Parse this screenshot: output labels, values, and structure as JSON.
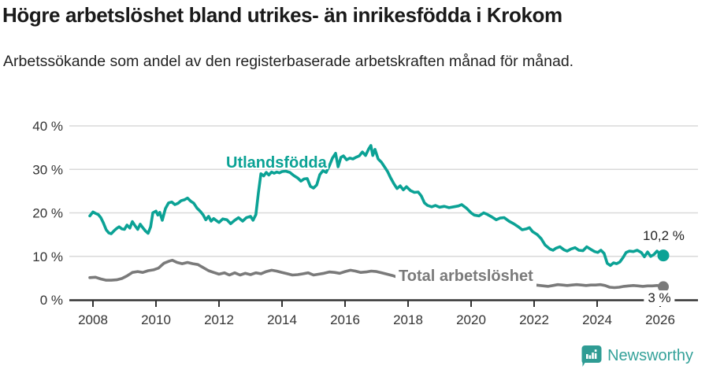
{
  "header": {
    "title": "Högre arbetslöshet bland utrikes- än inrikesfödda i Krokom",
    "subtitle": "Arbetssökande som andel av den registerbaserade arbetskraften månad för månad."
  },
  "footer": {
    "brand": "Newsworthy"
  },
  "colors": {
    "series_utlandsfodda": "#0ba295",
    "series_total": "#7a7a7a",
    "gridline": "#d9d9d9",
    "axis": "#333333",
    "tick_text": "#333333",
    "title_text": "#1a1a1a",
    "logo": "#35a29a",
    "background": "#ffffff"
  },
  "chart_data": {
    "type": "line",
    "title": "Högre arbetslöshet bland utrikes- än inrikesfödda i Krokom",
    "subtitle": "Arbetssökande som andel av den registerbaserade arbetskraften månad för månad.",
    "grid": true,
    "legend_position": "inline-labels",
    "x_axis": {
      "tick_labels": [
        "2008",
        "2010",
        "2012",
        "2014",
        "2016",
        "2018",
        "2020",
        "2022",
        "2024",
        "2026"
      ],
      "range": [
        2007.75,
        2027.2
      ]
    },
    "y_axis": {
      "ticks": [
        {
          "value": 0,
          "label": "0 %"
        },
        {
          "value": 10,
          "label": "10 %"
        },
        {
          "value": 20,
          "label": "20 %"
        },
        {
          "value": 30,
          "label": "30 %"
        },
        {
          "value": 40,
          "label": "40 %"
        }
      ],
      "range": [
        0,
        40
      ]
    },
    "series": [
      {
        "name": "Utlandsfödda",
        "color": "#0ba295",
        "end_label": "10,2 %",
        "end_value": 10.2,
        "points": [
          [
            2007.9,
            19.3
          ],
          [
            2008.0,
            20.2
          ],
          [
            2008.08,
            19.9
          ],
          [
            2008.17,
            19.6
          ],
          [
            2008.25,
            18.9
          ],
          [
            2008.33,
            17.7
          ],
          [
            2008.42,
            16.1
          ],
          [
            2008.5,
            15.4
          ],
          [
            2008.58,
            15.2
          ],
          [
            2008.67,
            15.9
          ],
          [
            2008.75,
            16.4
          ],
          [
            2008.83,
            16.8
          ],
          [
            2008.92,
            16.3
          ],
          [
            2009.0,
            16.2
          ],
          [
            2009.08,
            17.2
          ],
          [
            2009.17,
            16.5
          ],
          [
            2009.25,
            18.0
          ],
          [
            2009.33,
            17.1
          ],
          [
            2009.42,
            16.2
          ],
          [
            2009.5,
            17.4
          ],
          [
            2009.58,
            16.6
          ],
          [
            2009.67,
            15.8
          ],
          [
            2009.75,
            15.3
          ],
          [
            2009.83,
            16.8
          ],
          [
            2009.9,
            20.0
          ],
          [
            2010.0,
            20.4
          ],
          [
            2010.06,
            19.5
          ],
          [
            2010.12,
            20.1
          ],
          [
            2010.2,
            18.3
          ],
          [
            2010.3,
            21.0
          ],
          [
            2010.4,
            22.3
          ],
          [
            2010.5,
            22.5
          ],
          [
            2010.6,
            21.9
          ],
          [
            2010.7,
            22.2
          ],
          [
            2010.8,
            22.8
          ],
          [
            2010.9,
            23.0
          ],
          [
            2011.0,
            23.4
          ],
          [
            2011.1,
            22.7
          ],
          [
            2011.2,
            22.2
          ],
          [
            2011.3,
            21.1
          ],
          [
            2011.4,
            20.4
          ],
          [
            2011.5,
            19.5
          ],
          [
            2011.58,
            18.4
          ],
          [
            2011.67,
            19.2
          ],
          [
            2011.75,
            18.1
          ],
          [
            2011.83,
            18.7
          ],
          [
            2011.92,
            18.2
          ],
          [
            2012.0,
            17.8
          ],
          [
            2012.12,
            18.6
          ],
          [
            2012.25,
            18.4
          ],
          [
            2012.37,
            17.5
          ],
          [
            2012.5,
            18.3
          ],
          [
            2012.62,
            18.9
          ],
          [
            2012.75,
            18.1
          ],
          [
            2012.87,
            18.9
          ],
          [
            2013.0,
            19.2
          ],
          [
            2013.08,
            18.3
          ],
          [
            2013.17,
            19.6
          ],
          [
            2013.25,
            24.6
          ],
          [
            2013.33,
            29.0
          ],
          [
            2013.42,
            28.5
          ],
          [
            2013.5,
            29.3
          ],
          [
            2013.58,
            28.7
          ],
          [
            2013.67,
            29.4
          ],
          [
            2013.75,
            29.1
          ],
          [
            2013.83,
            29.4
          ],
          [
            2013.92,
            29.2
          ],
          [
            2014.0,
            29.5
          ],
          [
            2014.12,
            29.6
          ],
          [
            2014.25,
            29.3
          ],
          [
            2014.37,
            28.6
          ],
          [
            2014.5,
            28.0
          ],
          [
            2014.6,
            27.3
          ],
          [
            2014.7,
            27.8
          ],
          [
            2014.8,
            27.9
          ],
          [
            2014.9,
            26.1
          ],
          [
            2015.0,
            25.7
          ],
          [
            2015.1,
            26.4
          ],
          [
            2015.2,
            28.8
          ],
          [
            2015.3,
            29.7
          ],
          [
            2015.4,
            29.3
          ],
          [
            2015.5,
            30.8
          ],
          [
            2015.6,
            32.6
          ],
          [
            2015.7,
            33.7
          ],
          [
            2015.78,
            30.6
          ],
          [
            2015.87,
            32.8
          ],
          [
            2015.95,
            33.1
          ],
          [
            2016.05,
            32.2
          ],
          [
            2016.15,
            32.6
          ],
          [
            2016.25,
            32.4
          ],
          [
            2016.35,
            32.8
          ],
          [
            2016.45,
            33.1
          ],
          [
            2016.55,
            34.0
          ],
          [
            2016.65,
            33.2
          ],
          [
            2016.75,
            34.7
          ],
          [
            2016.82,
            35.5
          ],
          [
            2016.88,
            33.2
          ],
          [
            2016.95,
            34.6
          ],
          [
            2017.05,
            32.4
          ],
          [
            2017.15,
            31.7
          ],
          [
            2017.25,
            30.6
          ],
          [
            2017.35,
            29.5
          ],
          [
            2017.45,
            28.0
          ],
          [
            2017.55,
            26.7
          ],
          [
            2017.65,
            25.6
          ],
          [
            2017.75,
            26.2
          ],
          [
            2017.85,
            25.3
          ],
          [
            2017.95,
            26.0
          ],
          [
            2018.08,
            25.1
          ],
          [
            2018.2,
            24.7
          ],
          [
            2018.32,
            24.8
          ],
          [
            2018.42,
            23.9
          ],
          [
            2018.52,
            22.3
          ],
          [
            2018.62,
            21.7
          ],
          [
            2018.75,
            21.4
          ],
          [
            2018.87,
            21.7
          ],
          [
            2019.0,
            21.3
          ],
          [
            2019.15,
            21.5
          ],
          [
            2019.3,
            21.2
          ],
          [
            2019.45,
            21.4
          ],
          [
            2019.6,
            21.6
          ],
          [
            2019.7,
            21.9
          ],
          [
            2019.85,
            21.1
          ],
          [
            2020.0,
            20.0
          ],
          [
            2020.1,
            19.5
          ],
          [
            2020.25,
            19.3
          ],
          [
            2020.4,
            20.0
          ],
          [
            2020.5,
            19.7
          ],
          [
            2020.65,
            19.1
          ],
          [
            2020.8,
            18.4
          ],
          [
            2020.92,
            18.8
          ],
          [
            2021.05,
            18.9
          ],
          [
            2021.2,
            18.1
          ],
          [
            2021.35,
            17.5
          ],
          [
            2021.5,
            16.8
          ],
          [
            2021.62,
            16.1
          ],
          [
            2021.75,
            16.3
          ],
          [
            2021.85,
            16.6
          ],
          [
            2021.95,
            15.7
          ],
          [
            2022.1,
            15.0
          ],
          [
            2022.22,
            14.1
          ],
          [
            2022.35,
            12.6
          ],
          [
            2022.5,
            11.7
          ],
          [
            2022.6,
            11.4
          ],
          [
            2022.7,
            11.9
          ],
          [
            2022.82,
            12.2
          ],
          [
            2022.95,
            11.5
          ],
          [
            2023.05,
            11.2
          ],
          [
            2023.17,
            11.7
          ],
          [
            2023.3,
            12.0
          ],
          [
            2023.42,
            11.4
          ],
          [
            2023.55,
            11.3
          ],
          [
            2023.67,
            12.2
          ],
          [
            2023.8,
            11.6
          ],
          [
            2023.92,
            11.1
          ],
          [
            2024.02,
            10.9
          ],
          [
            2024.12,
            11.4
          ],
          [
            2024.22,
            10.7
          ],
          [
            2024.32,
            8.4
          ],
          [
            2024.42,
            7.9
          ],
          [
            2024.52,
            8.5
          ],
          [
            2024.62,
            8.3
          ],
          [
            2024.72,
            8.7
          ],
          [
            2024.82,
            9.7
          ],
          [
            2024.92,
            10.9
          ],
          [
            2025.02,
            11.2
          ],
          [
            2025.15,
            11.1
          ],
          [
            2025.27,
            11.4
          ],
          [
            2025.4,
            10.9
          ],
          [
            2025.5,
            9.9
          ],
          [
            2025.6,
            11.0
          ],
          [
            2025.7,
            10.0
          ],
          [
            2025.8,
            10.4
          ],
          [
            2025.9,
            11.2
          ],
          [
            2026.0,
            10.5
          ],
          [
            2026.1,
            10.2
          ]
        ]
      },
      {
        "name": "Total arbetslöshet",
        "color": "#7a7a7a",
        "end_label": "3 %",
        "end_value": 3.0,
        "points": [
          [
            2007.9,
            5.1
          ],
          [
            2008.08,
            5.2
          ],
          [
            2008.25,
            4.8
          ],
          [
            2008.42,
            4.5
          ],
          [
            2008.58,
            4.5
          ],
          [
            2008.75,
            4.6
          ],
          [
            2008.92,
            4.9
          ],
          [
            2009.08,
            5.5
          ],
          [
            2009.25,
            6.3
          ],
          [
            2009.42,
            6.5
          ],
          [
            2009.58,
            6.3
          ],
          [
            2009.75,
            6.7
          ],
          [
            2009.92,
            6.9
          ],
          [
            2010.08,
            7.3
          ],
          [
            2010.25,
            8.4
          ],
          [
            2010.42,
            8.9
          ],
          [
            2010.52,
            9.1
          ],
          [
            2010.67,
            8.6
          ],
          [
            2010.83,
            8.3
          ],
          [
            2011.0,
            8.6
          ],
          [
            2011.17,
            8.3
          ],
          [
            2011.33,
            8.1
          ],
          [
            2011.5,
            7.4
          ],
          [
            2011.67,
            6.7
          ],
          [
            2011.83,
            6.3
          ],
          [
            2012.0,
            5.9
          ],
          [
            2012.17,
            6.2
          ],
          [
            2012.33,
            5.7
          ],
          [
            2012.5,
            6.2
          ],
          [
            2012.67,
            5.7
          ],
          [
            2012.83,
            6.1
          ],
          [
            2013.0,
            5.8
          ],
          [
            2013.17,
            6.2
          ],
          [
            2013.33,
            6.0
          ],
          [
            2013.5,
            6.5
          ],
          [
            2013.67,
            6.8
          ],
          [
            2013.83,
            6.6
          ],
          [
            2014.0,
            6.3
          ],
          [
            2014.17,
            6.0
          ],
          [
            2014.33,
            5.7
          ],
          [
            2014.5,
            5.8
          ],
          [
            2014.67,
            6.0
          ],
          [
            2014.83,
            6.2
          ],
          [
            2015.0,
            5.7
          ],
          [
            2015.17,
            5.9
          ],
          [
            2015.33,
            6.1
          ],
          [
            2015.5,
            6.4
          ],
          [
            2015.67,
            6.3
          ],
          [
            2015.83,
            6.1
          ],
          [
            2016.0,
            6.5
          ],
          [
            2016.17,
            6.8
          ],
          [
            2016.33,
            6.6
          ],
          [
            2016.5,
            6.3
          ],
          [
            2016.67,
            6.4
          ],
          [
            2016.83,
            6.6
          ],
          [
            2017.0,
            6.5
          ],
          [
            2017.17,
            6.2
          ],
          [
            2017.33,
            5.9
          ],
          [
            2017.5,
            5.6
          ],
          [
            2017.62,
            5.3
          ],
          [
            2017.75,
            5.5
          ],
          [
            2017.9,
            5.3
          ],
          [
            2018.1,
            5.2
          ],
          [
            2018.4,
            5.0
          ],
          [
            2018.7,
            4.8
          ],
          [
            2019.0,
            4.7
          ],
          [
            2019.35,
            4.5
          ],
          [
            2019.7,
            4.4
          ],
          [
            2020.05,
            4.5
          ],
          [
            2020.4,
            4.4
          ],
          [
            2020.75,
            4.2
          ],
          [
            2021.1,
            4.0
          ],
          [
            2021.45,
            3.8
          ],
          [
            2021.8,
            3.6
          ],
          [
            2022.05,
            3.4
          ],
          [
            2022.3,
            3.2
          ],
          [
            2022.45,
            3.1
          ],
          [
            2022.6,
            3.3
          ],
          [
            2022.75,
            3.5
          ],
          [
            2022.9,
            3.4
          ],
          [
            2023.05,
            3.3
          ],
          [
            2023.2,
            3.4
          ],
          [
            2023.35,
            3.5
          ],
          [
            2023.5,
            3.4
          ],
          [
            2023.65,
            3.3
          ],
          [
            2023.8,
            3.4
          ],
          [
            2023.95,
            3.4
          ],
          [
            2024.1,
            3.5
          ],
          [
            2024.25,
            3.3
          ],
          [
            2024.4,
            2.9
          ],
          [
            2024.55,
            2.8
          ],
          [
            2024.7,
            2.9
          ],
          [
            2024.85,
            3.1
          ],
          [
            2025.0,
            3.2
          ],
          [
            2025.15,
            3.3
          ],
          [
            2025.3,
            3.2
          ],
          [
            2025.45,
            3.1
          ],
          [
            2025.6,
            3.2
          ],
          [
            2025.75,
            3.2
          ],
          [
            2025.9,
            3.3
          ],
          [
            2026.0,
            3.2
          ],
          [
            2026.1,
            3.0
          ]
        ]
      }
    ]
  }
}
